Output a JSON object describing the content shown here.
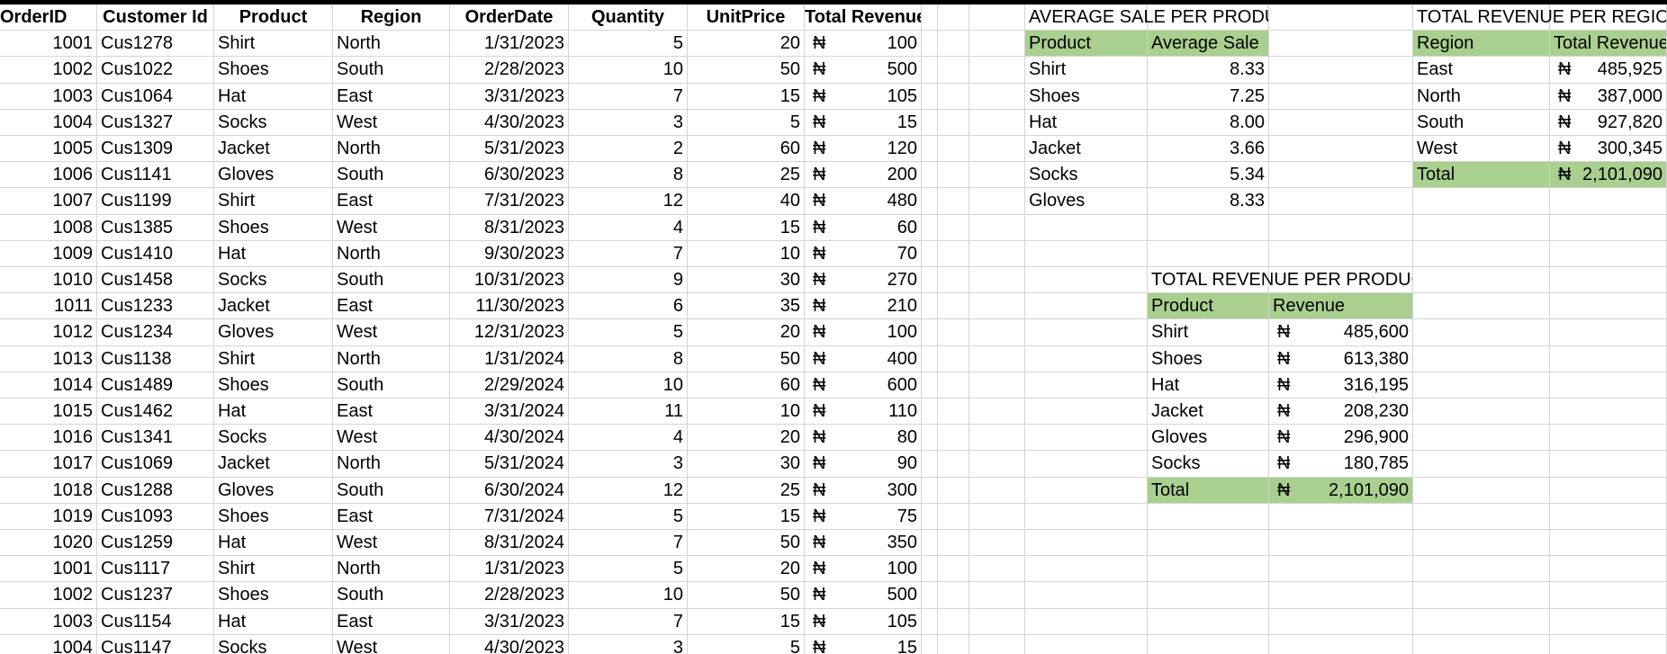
{
  "orders": {
    "headers": [
      "OrderID",
      "Customer Id",
      "Product",
      "Region",
      "OrderDate",
      "Quantity",
      "UnitPrice",
      "Total Revenue"
    ],
    "currency_symbol": "₦",
    "rows": [
      [
        "1001",
        "Cus1278",
        "Shirt",
        "North",
        "1/31/2023",
        "5",
        "20",
        "100"
      ],
      [
        "1002",
        "Cus1022",
        "Shoes",
        "South",
        "2/28/2023",
        "10",
        "50",
        "500"
      ],
      [
        "1003",
        "Cus1064",
        "Hat",
        "East",
        "3/31/2023",
        "7",
        "15",
        "105"
      ],
      [
        "1004",
        "Cus1327",
        "Socks",
        "West",
        "4/30/2023",
        "3",
        "5",
        "15"
      ],
      [
        "1005",
        "Cus1309",
        "Jacket",
        "North",
        "5/31/2023",
        "2",
        "60",
        "120"
      ],
      [
        "1006",
        "Cus1141",
        "Gloves",
        "South",
        "6/30/2023",
        "8",
        "25",
        "200"
      ],
      [
        "1007",
        "Cus1199",
        "Shirt",
        "East",
        "7/31/2023",
        "12",
        "40",
        "480"
      ],
      [
        "1008",
        "Cus1385",
        "Shoes",
        "West",
        "8/31/2023",
        "4",
        "15",
        "60"
      ],
      [
        "1009",
        "Cus1410",
        "Hat",
        "North",
        "9/30/2023",
        "7",
        "10",
        "70"
      ],
      [
        "1010",
        "Cus1458",
        "Socks",
        "South",
        "10/31/2023",
        "9",
        "30",
        "270"
      ],
      [
        "1011",
        "Cus1233",
        "Jacket",
        "East",
        "11/30/2023",
        "6",
        "35",
        "210"
      ],
      [
        "1012",
        "Cus1234",
        "Gloves",
        "West",
        "12/31/2023",
        "5",
        "20",
        "100"
      ],
      [
        "1013",
        "Cus1138",
        "Shirt",
        "North",
        "1/31/2024",
        "8",
        "50",
        "400"
      ],
      [
        "1014",
        "Cus1489",
        "Shoes",
        "South",
        "2/29/2024",
        "10",
        "60",
        "600"
      ],
      [
        "1015",
        "Cus1462",
        "Hat",
        "East",
        "3/31/2024",
        "11",
        "10",
        "110"
      ],
      [
        "1016",
        "Cus1341",
        "Socks",
        "West",
        "4/30/2024",
        "4",
        "20",
        "80"
      ],
      [
        "1017",
        "Cus1069",
        "Jacket",
        "North",
        "5/31/2024",
        "3",
        "30",
        "90"
      ],
      [
        "1018",
        "Cus1288",
        "Gloves",
        "South",
        "6/30/2024",
        "12",
        "25",
        "300"
      ],
      [
        "1019",
        "Cus1093",
        "Shoes",
        "East",
        "7/31/2024",
        "5",
        "15",
        "75"
      ],
      [
        "1020",
        "Cus1259",
        "Hat",
        "West",
        "8/31/2024",
        "7",
        "50",
        "350"
      ],
      [
        "1001",
        "Cus1117",
        "Shirt",
        "North",
        "1/31/2023",
        "5",
        "20",
        "100"
      ],
      [
        "1002",
        "Cus1237",
        "Shoes",
        "South",
        "2/28/2023",
        "10",
        "50",
        "500"
      ],
      [
        "1003",
        "Cus1154",
        "Hat",
        "East",
        "3/31/2023",
        "7",
        "15",
        "105"
      ],
      [
        "1004",
        "Cus1147",
        "Socks",
        "West",
        "4/30/2023",
        "3",
        "5",
        "15"
      ]
    ]
  },
  "avg_sale": {
    "title": "AVERAGE SALE PER PRODUCT",
    "headers": [
      "Product",
      "Average Sale"
    ],
    "rows": [
      [
        "Shirt",
        "8.33"
      ],
      [
        "Shoes",
        "7.25"
      ],
      [
        "Hat",
        "8.00"
      ],
      [
        "Jacket",
        "3.66"
      ],
      [
        "Socks",
        "5.34"
      ],
      [
        "Gloves",
        "8.33"
      ]
    ]
  },
  "rev_region": {
    "title": "TOTAL REVENUE PER REGION",
    "headers": [
      "Region",
      "Total Revenue"
    ],
    "rows": [
      [
        "East",
        "485,925"
      ],
      [
        "North",
        "387,000"
      ],
      [
        "South",
        "927,820"
      ],
      [
        "West",
        "300,345"
      ]
    ],
    "total_label": "Total",
    "total_value": "2,101,090"
  },
  "rev_product": {
    "title": "TOTAL REVENUE PER PRODUCT",
    "headers": [
      "Product",
      "Revenue"
    ],
    "rows": [
      [
        "Shirt",
        "485,600"
      ],
      [
        "Shoes",
        "613,380"
      ],
      [
        "Hat",
        "316,195"
      ],
      [
        "Jacket",
        "208,230"
      ],
      [
        "Gloves",
        "296,900"
      ],
      [
        "Socks",
        "180,785"
      ]
    ],
    "total_label": "Total",
    "total_value": "2,101,090"
  },
  "colors": {
    "header_green": "#a9d08e",
    "gridline": "#d4d4d4"
  }
}
